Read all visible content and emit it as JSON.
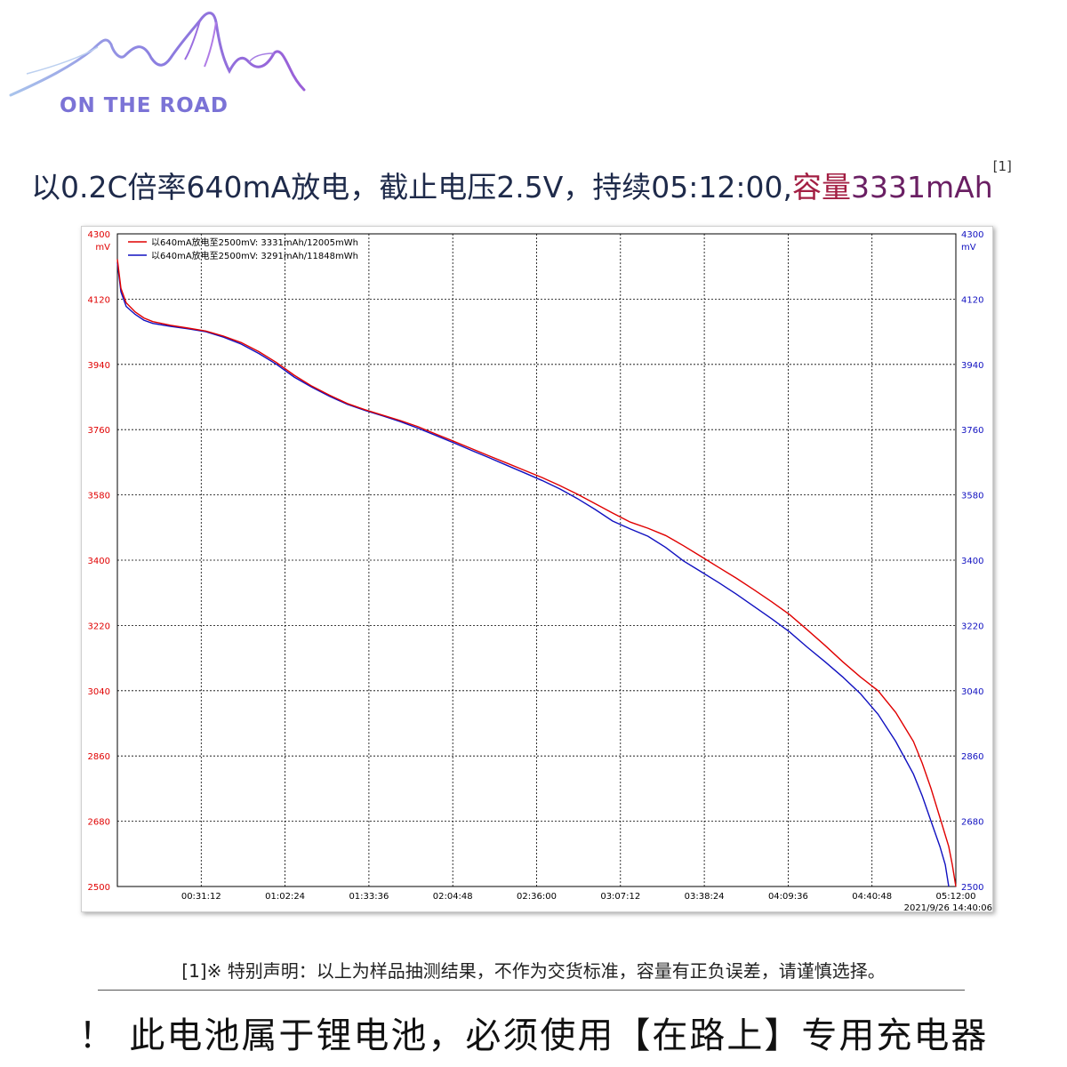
{
  "logo": {
    "brand_text": "ON THE ROAD"
  },
  "headline": {
    "part1": "以0.2C倍率640mA放电，截止电压2.5V，持续05:12:00,",
    "capacity_label": "容量",
    "capacity_value": "3331mAh",
    "ref": "[1]"
  },
  "chart_data": {
    "type": "line",
    "y_unit": "mV",
    "ylim": [
      2500,
      4300
    ],
    "y_ticks": [
      "4300",
      "4120",
      "3940",
      "3760",
      "3580",
      "3400",
      "3220",
      "3040",
      "2860",
      "2680",
      "2500"
    ],
    "x_unit": "elapsed time (h:mm:ss)",
    "xlim": [
      "00:00:00",
      "05:12:00"
    ],
    "x_ticks": [
      "00:31:12",
      "01:02:24",
      "01:33:36",
      "02:04:48",
      "02:36:00",
      "03:07:12",
      "03:38:24",
      "04:09:36",
      "04:40:48",
      "05:12:00"
    ],
    "timestamp": "2021/9/26 14:40:06",
    "grid": true,
    "legend_position": "top-left",
    "series": [
      {
        "name": "以640mA放电至2500mV: 3331mAh/12005mWh",
        "color": "#e00000",
        "points": [
          [
            0,
            4230
          ],
          [
            2,
            4150
          ],
          [
            5,
            4110
          ],
          [
            10,
            4085
          ],
          [
            15,
            4068
          ],
          [
            20,
            4058
          ],
          [
            30,
            4048
          ],
          [
            40,
            4040
          ],
          [
            50,
            4032
          ],
          [
            60,
            4018
          ],
          [
            70,
            4000
          ],
          [
            80,
            3975
          ],
          [
            90,
            3945
          ],
          [
            100,
            3910
          ],
          [
            110,
            3880
          ],
          [
            120,
            3855
          ],
          [
            130,
            3832
          ],
          [
            140,
            3815
          ],
          [
            150,
            3800
          ],
          [
            160,
            3785
          ],
          [
            170,
            3768
          ],
          [
            180,
            3748
          ],
          [
            190,
            3728
          ],
          [
            200,
            3708
          ],
          [
            210,
            3688
          ],
          [
            220,
            3668
          ],
          [
            230,
            3648
          ],
          [
            240,
            3628
          ],
          [
            250,
            3606
          ],
          [
            260,
            3582
          ],
          [
            270,
            3556
          ],
          [
            280,
            3530
          ],
          [
            290,
            3505
          ],
          [
            300,
            3488
          ],
          [
            310,
            3468
          ],
          [
            320,
            3440
          ],
          [
            330,
            3410
          ],
          [
            340,
            3380
          ],
          [
            350,
            3350
          ],
          [
            360,
            3318
          ],
          [
            370,
            3285
          ],
          [
            380,
            3250
          ],
          [
            390,
            3208
          ],
          [
            400,
            3165
          ],
          [
            410,
            3120
          ],
          [
            420,
            3078
          ],
          [
            430,
            3040
          ],
          [
            440,
            2980
          ],
          [
            450,
            2900
          ],
          [
            455,
            2840
          ],
          [
            460,
            2770
          ],
          [
            465,
            2690
          ],
          [
            470,
            2610
          ],
          [
            472,
            2560
          ],
          [
            474,
            2500
          ]
        ]
      },
      {
        "name": "以640mA放电至2500mV: 3291mAh/11848mWh",
        "color": "#1010c0",
        "points": [
          [
            0,
            4220
          ],
          [
            2,
            4140
          ],
          [
            5,
            4100
          ],
          [
            10,
            4078
          ],
          [
            15,
            4062
          ],
          [
            20,
            4053
          ],
          [
            30,
            4045
          ],
          [
            40,
            4038
          ],
          [
            50,
            4030
          ],
          [
            60,
            4015
          ],
          [
            70,
            3996
          ],
          [
            80,
            3970
          ],
          [
            90,
            3940
          ],
          [
            100,
            3905
          ],
          [
            110,
            3877
          ],
          [
            120,
            3852
          ],
          [
            130,
            3830
          ],
          [
            140,
            3813
          ],
          [
            150,
            3798
          ],
          [
            160,
            3782
          ],
          [
            170,
            3764
          ],
          [
            180,
            3744
          ],
          [
            190,
            3724
          ],
          [
            200,
            3703
          ],
          [
            210,
            3683
          ],
          [
            220,
            3662
          ],
          [
            230,
            3641
          ],
          [
            240,
            3620
          ],
          [
            250,
            3597
          ],
          [
            260,
            3570
          ],
          [
            270,
            3540
          ],
          [
            280,
            3508
          ],
          [
            290,
            3486
          ],
          [
            300,
            3466
          ],
          [
            310,
            3435
          ],
          [
            320,
            3398
          ],
          [
            330,
            3368
          ],
          [
            340,
            3338
          ],
          [
            350,
            3306
          ],
          [
            360,
            3272
          ],
          [
            370,
            3238
          ],
          [
            380,
            3202
          ],
          [
            390,
            3160
          ],
          [
            400,
            3120
          ],
          [
            410,
            3078
          ],
          [
            420,
            3032
          ],
          [
            430,
            2975
          ],
          [
            440,
            2900
          ],
          [
            450,
            2810
          ],
          [
            455,
            2750
          ],
          [
            460,
            2680
          ],
          [
            465,
            2610
          ],
          [
            468,
            2560
          ],
          [
            470,
            2500
          ]
        ]
      }
    ]
  },
  "footnote": "[1]※ 特别声明：以上为样品抽测结果，不作为交货标准，容量有正负误差，请谨慎选择。",
  "warning": "！ 此电池属于锂电池，必须使用【在路上】专用充电器"
}
